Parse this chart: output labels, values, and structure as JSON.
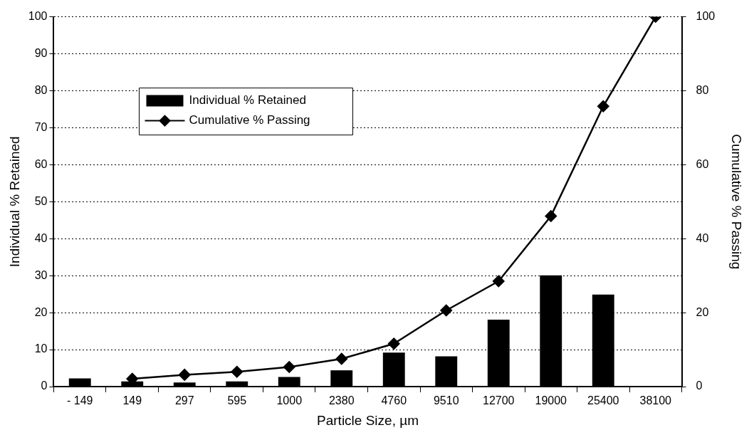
{
  "chart_data": {
    "type": "bar",
    "xlabel": "Particle Size, µm",
    "ylabel": "Individual % Retained",
    "y2label": "Cumulative % Passing",
    "categories": [
      "- 149",
      "149",
      "297",
      "595",
      "1000",
      "2380",
      "4760",
      "9510",
      "12700",
      "19000",
      "25400",
      "38100"
    ],
    "series": [
      {
        "name": "Individual % Retained",
        "color": "#000000",
        "values": [
          2.2,
          1.4,
          1.1,
          1.4,
          2.6,
          4.4,
          9.2,
          8.2,
          18.1,
          30.1,
          24.9,
          0
        ]
      },
      {
        "name": "Cumulative % Passing",
        "type": "line",
        "axis": "y2",
        "color": "#000000",
        "marker": "diamond",
        "line_style": "solid",
        "values": [
          null,
          2.1,
          3.2,
          4.0,
          5.3,
          7.5,
          11.6,
          20.6,
          28.5,
          46.1,
          75.8,
          100
        ]
      }
    ],
    "ylim": [
      0,
      100
    ],
    "yticks": [
      0,
      10,
      20,
      30,
      40,
      50,
      60,
      70,
      80,
      90,
      100
    ],
    "y2lim": [
      0,
      100
    ],
    "y2ticks": [
      0,
      20,
      40,
      60,
      80,
      100
    ],
    "grid": "y",
    "legend": "top left"
  }
}
